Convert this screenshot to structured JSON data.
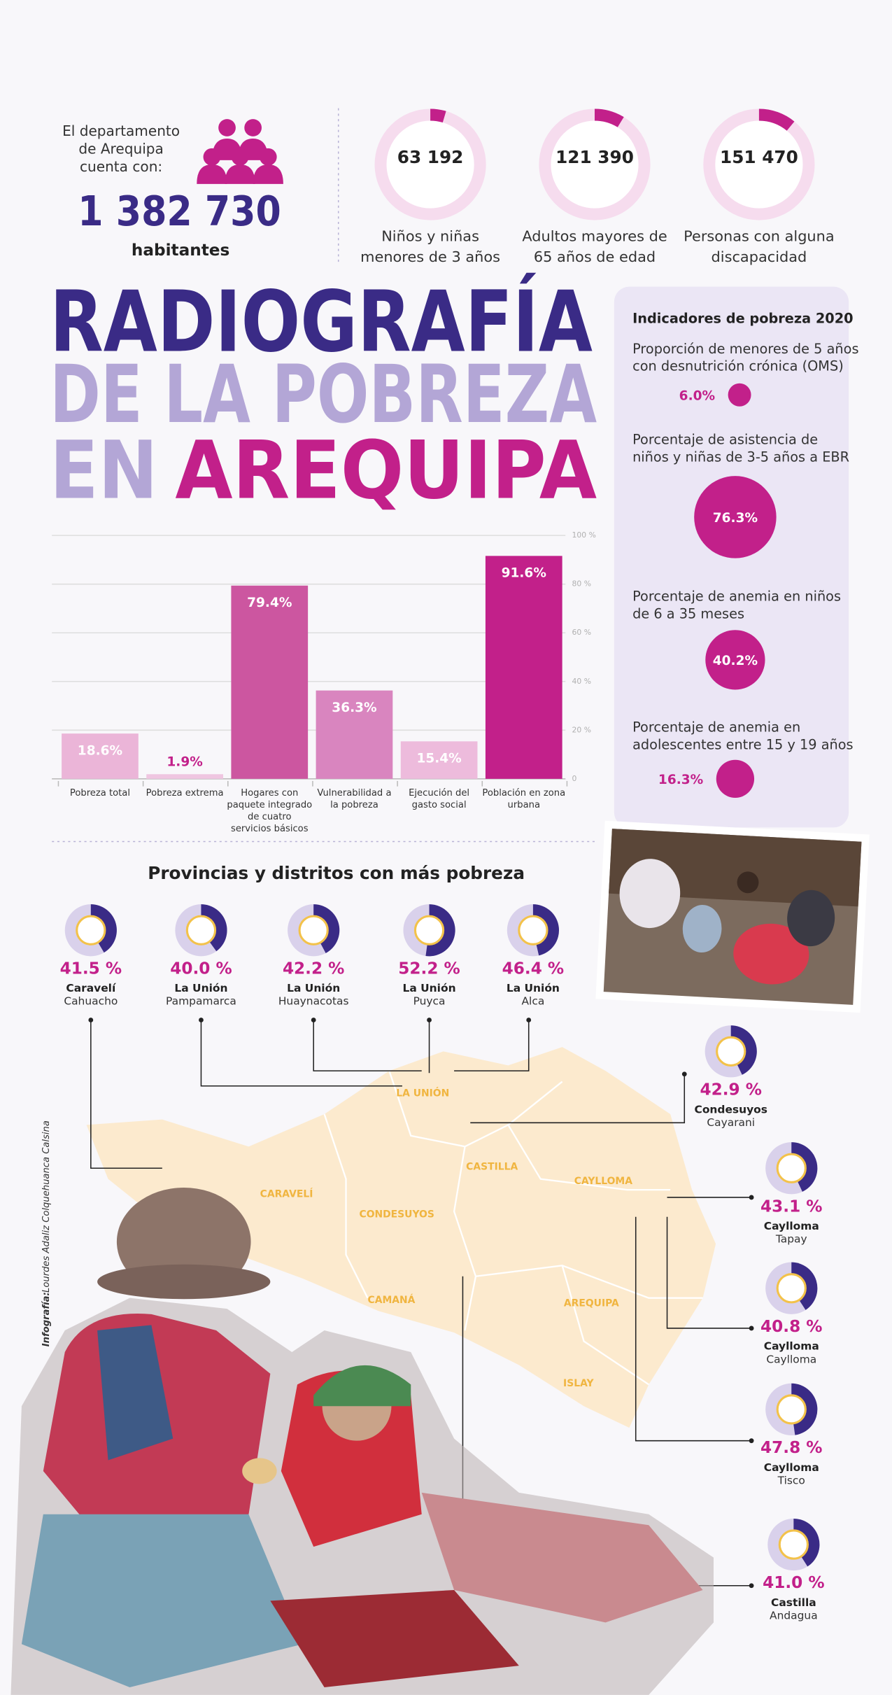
{
  "header": {
    "intro": [
      "El departamento",
      "de Arequipa",
      "cuenta con:"
    ],
    "population": {
      "value": 1382730,
      "label": "1 382 730"
    },
    "unit": "habitantes",
    "stats": [
      {
        "value": 63192,
        "label": "63 192",
        "caption": [
          "Niños y niñas",
          "menores de 3 años"
        ]
      },
      {
        "value": 121390,
        "label": "121 390",
        "caption": [
          "Adultos mayores de",
          "65 años de edad"
        ]
      },
      {
        "value": 151470,
        "label": "151 470",
        "caption": [
          "Personas con alguna",
          "discapacidad"
        ]
      }
    ]
  },
  "title": {
    "line1": "RADIOGRAFÍA",
    "line2": "DE LA POBREZA",
    "line3a": "EN",
    "line3b": "AREQUIPA"
  },
  "chart_data": {
    "type": "bar",
    "categories": [
      "Pobreza total",
      "Pobreza extrema",
      "Hogares con paquete integrado de cuatro servicios básicos",
      "Vulnerabilidad a la pobreza",
      "Ejecución del gasto social",
      "Población en zona urbana"
    ],
    "values": [
      18.6,
      1.9,
      79.4,
      36.3,
      15.4,
      91.6
    ],
    "value_labels": [
      "18.6%",
      "1.9%",
      "79.4%",
      "36.3%",
      "15.4%",
      "91.6%"
    ],
    "colors": [
      "#ebb5d8",
      "#efc6e1",
      "#cc56a0",
      "#d985bf",
      "#edbbdc",
      "#c2208a"
    ],
    "ylim": [
      0,
      100
    ],
    "yticks": [
      0,
      {
        "value": 20,
        "label": "20 %"
      },
      {
        "value": 40,
        "label": "40 %"
      },
      {
        "value": 60,
        "label": "60 %"
      },
      {
        "value": 80,
        "label": "80 %"
      },
      {
        "value": 100,
        "label": "100 %"
      }
    ],
    "grid": true
  },
  "indicators": {
    "title": "Indicadores de pobreza 2020",
    "items": [
      {
        "text": [
          "Proporción de menores de 5 años",
          "con desnutrición crónica (OMS)"
        ],
        "value": 6.0,
        "value_label": "6.0%"
      },
      {
        "text": [
          "Porcentaje de asistencia de",
          "niños y niñas de 3-5 años a EBR"
        ],
        "value": 76.3,
        "value_label": "76.3%"
      },
      {
        "text": [
          "Porcentaje de anemia en niños",
          "de 6 a 35 meses"
        ],
        "value": 40.2,
        "value_label": "40.2%"
      },
      {
        "text": [
          "Porcentaje de anemia en",
          "adolescentes entre 15 y 19 años"
        ],
        "value": 16.3,
        "value_label": "16.3%"
      }
    ]
  },
  "provinces": {
    "title": "Provincias y distritos con más pobreza",
    "items": [
      {
        "value": 41.5,
        "label": "41.5 %",
        "province": "Caravelí",
        "district": "Cahuacho"
      },
      {
        "value": 40.0,
        "label": "40.0 %",
        "province": "La Unión",
        "district": "Pampamarca"
      },
      {
        "value": 42.2,
        "label": "42.2 %",
        "province": "La Unión",
        "district": "Huaynacotas"
      },
      {
        "value": 52.2,
        "label": "52.2 %",
        "province": "La Unión",
        "district": "Puyca"
      },
      {
        "value": 46.4,
        "label": "46.4 %",
        "province": "La Unión",
        "district": "Alca"
      },
      {
        "value": 42.9,
        "label": "42.9 %",
        "province": "Condesuyos",
        "district": "Cayarani"
      },
      {
        "value": 43.1,
        "label": "43.1 %",
        "province": "Caylloma",
        "district": "Tapay"
      },
      {
        "value": 40.8,
        "label": "40.8 %",
        "province": "Caylloma",
        "district": "Caylloma"
      },
      {
        "value": 47.8,
        "label": "47.8 %",
        "province": "Caylloma",
        "district": "Tisco"
      },
      {
        "value": 41.0,
        "label": "41.0 %",
        "province": "Castilla",
        "district": "Andagua"
      }
    ]
  },
  "map": {
    "regions": [
      "LA UNIÓN",
      "CARAVELÍ",
      "CONDESUYOS",
      "CASTILLA",
      "CAYLLOMA",
      "CAMANÁ",
      "AREQUIPA",
      "ISLAY"
    ]
  },
  "credit": {
    "label": "Infografía:",
    "author": "Lourdes Adaliz Colquehuanca Calsina"
  }
}
